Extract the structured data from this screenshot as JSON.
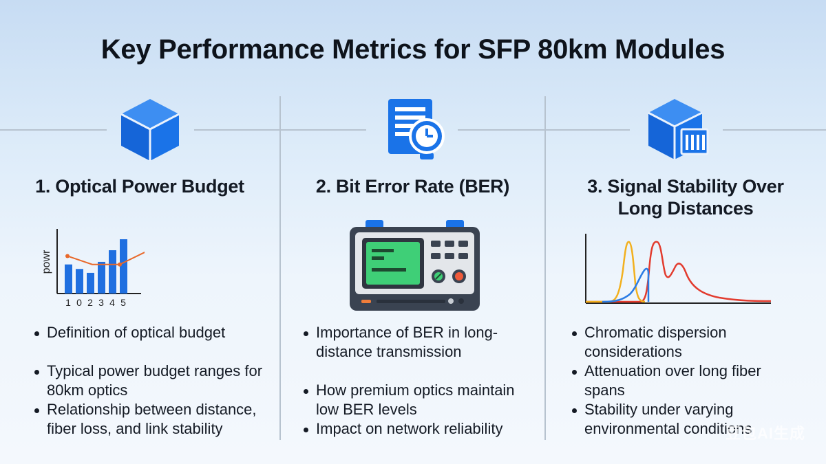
{
  "title": "Key Performance Metrics for SFP 80km Modules",
  "columns": [
    {
      "heading": "1. Optical Power Budget",
      "icon": "cube-icon",
      "bullets": [
        "Definition of optical budget",
        "Typical power budget ranges for 80km optics",
        "Relationship between distance, fiber loss, and link stability"
      ]
    },
    {
      "heading": "2. Bit Error Rate (BER)",
      "icon": "document-clock-icon",
      "bullets": [
        "Importance of BER in long-distance transmission",
        "How premium optics maintain low BER levels",
        "Impact on network reliability"
      ]
    },
    {
      "heading_line1": "3. Signal Stability Over",
      "heading_line2": "Long Distances",
      "icon": "cube-server-icon",
      "bullets": [
        "Chromatic dispersion considerations",
        "Attenuation over long fiber spans",
        "Stability under varying environmental conditions"
      ]
    }
  ],
  "chart_data": {
    "type": "bar",
    "ylabel": "powr",
    "categories": [
      "1",
      "0",
      "2",
      "3",
      "4",
      "5"
    ],
    "values": [
      0.45,
      0.38,
      0.32,
      0.49,
      0.67,
      0.84
    ],
    "line_values": [
      0.58,
      0.45,
      0.45,
      0.71
    ],
    "colors": {
      "bar": "#1f6fe0",
      "line": "#e8682a"
    }
  },
  "watermark": "豆包AI生成",
  "colors": {
    "accent": "#1a73e8",
    "screen": "#3fcf77"
  }
}
